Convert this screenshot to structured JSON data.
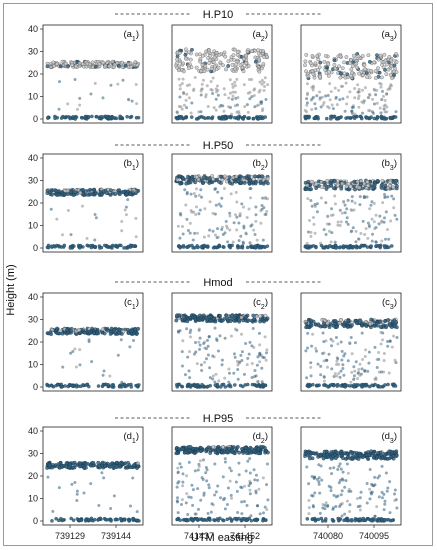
{
  "chart_data": {
    "type": "scatter",
    "ylabel": "Height (m)",
    "xlabel": "UTM easting",
    "ylim": [
      0,
      40
    ],
    "yticks": [
      0,
      10,
      20,
      30,
      40
    ],
    "colors": {
      "gray": "#8a8a8a",
      "blue": "#2f5f7d"
    },
    "columns": [
      {
        "xticks": [
          "739129",
          "739144"
        ]
      },
      {
        "xticks": [
          "741437",
          "741452"
        ]
      },
      {
        "xticks": [
          "740080",
          "740095"
        ]
      }
    ],
    "rows": [
      {
        "title": "H.P10",
        "panels": [
          {
            "letter": "a",
            "sub": "1",
            "canopy_top": 25.5,
            "blue_top": 23,
            "blue_share": 0.15,
            "spread": 2.5
          },
          {
            "letter": "a",
            "sub": "2",
            "canopy_top": 31,
            "blue_top": 12,
            "blue_share": 0.1,
            "spread": 10
          },
          {
            "letter": "a",
            "sub": "3",
            "canopy_top": 29,
            "blue_top": 13,
            "blue_share": 0.15,
            "spread": 11
          }
        ]
      },
      {
        "title": "H.P50",
        "panels": [
          {
            "letter": "b",
            "sub": "1",
            "canopy_top": 26,
            "blue_top": 25,
            "blue_share": 0.6,
            "spread": 2.5
          },
          {
            "letter": "b",
            "sub": "2",
            "canopy_top": 32,
            "blue_top": 30,
            "blue_share": 0.6,
            "spread": 3.5
          },
          {
            "letter": "b",
            "sub": "3",
            "canopy_top": 30,
            "blue_top": 27,
            "blue_share": 0.5,
            "spread": 4
          }
        ]
      },
      {
        "title": "Hmod",
        "panels": [
          {
            "letter": "c",
            "sub": "1",
            "canopy_top": 26,
            "blue_top": 25,
            "blue_share": 0.7,
            "spread": 2.5
          },
          {
            "letter": "c",
            "sub": "2",
            "canopy_top": 32,
            "blue_top": 31,
            "blue_share": 0.7,
            "spread": 3
          },
          {
            "letter": "c",
            "sub": "3",
            "canopy_top": 30,
            "blue_top": 28,
            "blue_share": 0.6,
            "spread": 3.5
          }
        ]
      },
      {
        "title": "H.P95",
        "panels": [
          {
            "letter": "d",
            "sub": "1",
            "canopy_top": 26,
            "blue_top": 26,
            "blue_share": 0.95,
            "spread": 2.5
          },
          {
            "letter": "d",
            "sub": "2",
            "canopy_top": 33,
            "blue_top": 33,
            "blue_share": 0.9,
            "spread": 3
          },
          {
            "letter": "d",
            "sub": "3",
            "canopy_top": 31,
            "blue_top": 31,
            "blue_share": 0.85,
            "spread": 3.5
          }
        ]
      }
    ]
  }
}
